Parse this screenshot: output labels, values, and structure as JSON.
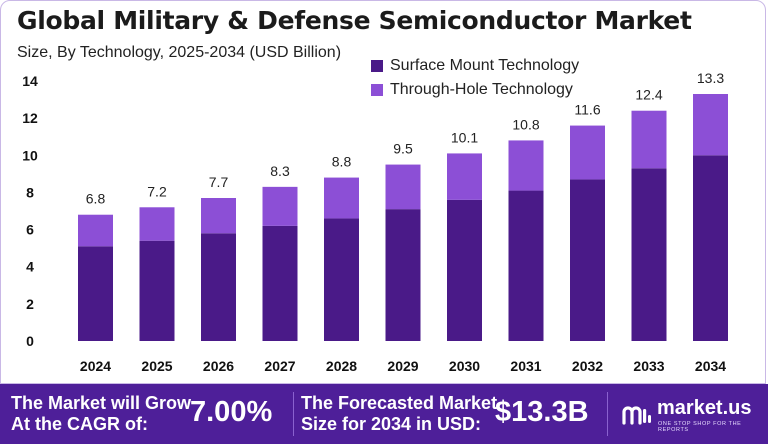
{
  "header": {
    "title": "Global Military & Defense Semiconductor Market",
    "subtitle": "Size, By Technology, 2025-2034 (USD Billion)"
  },
  "legend": [
    {
      "label": "Surface Mount Technology",
      "color": "#4a1a88"
    },
    {
      "label": "Through-Hole Technology",
      "color": "#8c4fd6"
    }
  ],
  "chart_data": {
    "type": "bar",
    "stacked": true,
    "categories": [
      "2024",
      "2025",
      "2026",
      "2027",
      "2028",
      "2029",
      "2030",
      "2031",
      "2032",
      "2033",
      "2034"
    ],
    "series": [
      {
        "name": "Surface Mount Technology",
        "color": "#4a1a88",
        "values": [
          5.1,
          5.4,
          5.8,
          6.2,
          6.6,
          7.1,
          7.6,
          8.1,
          8.7,
          9.3,
          10.0
        ]
      },
      {
        "name": "Through-Hole Technology",
        "color": "#8c4fd6",
        "values": [
          1.7,
          1.8,
          1.9,
          2.1,
          2.2,
          2.4,
          2.5,
          2.7,
          2.9,
          3.1,
          3.3
        ]
      }
    ],
    "totals": [
      "6.8",
      "7.2",
      "7.7",
      "8.3",
      "8.8",
      "9.5",
      "10.1",
      "10.8",
      "11.6",
      "12.4",
      "13.3"
    ],
    "ylim": [
      0,
      14
    ],
    "yticks": [
      "0",
      "2",
      "4",
      "6",
      "8",
      "10",
      "12",
      "14"
    ],
    "grid": false,
    "legend_position": "top-right"
  },
  "footer": {
    "cagr_label": "The Market will Grow\nAt the CAGR of:",
    "cagr_value": "7.00%",
    "forecast_label": "The Forecasted Market\nSize for 2034 in USD:",
    "forecast_value": "$13.3B",
    "brand": "market.us",
    "brand_tagline": "ONE STOP SHOP FOR THE REPORTS",
    "brand_icon": "market-us-logo-icon",
    "background": "#4e1f99"
  }
}
